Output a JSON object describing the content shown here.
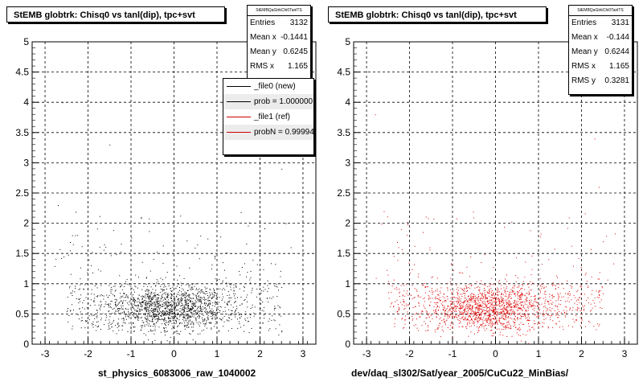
{
  "colors": {
    "ref": "#000000",
    "new": "#dd0000",
    "axis": "#000000",
    "grid": "#000000",
    "legend_red": "#cc0000"
  },
  "left_panel": {
    "title": "StEMB globtrk: Chisq0 vs tanl(dip), tpc+svt",
    "stats": {
      "name": "StEMBQaGtrkChi0TanlTS",
      "rows": [
        {
          "label": "Entries",
          "value": "3132"
        },
        {
          "label": "Mean x",
          "value": "-0.1441"
        },
        {
          "label": "Mean y",
          "value": "0.6245"
        },
        {
          "label": "RMS x",
          "value": "1.165"
        }
      ]
    },
    "legend": [
      {
        "text": "_file0 (new)",
        "color": "#000000"
      },
      {
        "text": "prob = 1.000000",
        "color": "#000000"
      },
      {
        "text": "_file1 (ref)",
        "color": "#cc0000"
      },
      {
        "text": "probN = 0.99994",
        "color": "#cc0000"
      }
    ],
    "footer": "st_physics_6083006_raw_1040002"
  },
  "right_panel": {
    "title": "StEMB globtrk: Chisq0 vs tanl(dip), tpc+svt",
    "stats": {
      "name": "StEMBQaGtrkChi0TanlTS",
      "rows": [
        {
          "label": "Entries",
          "value": "3131"
        },
        {
          "label": "Mean x",
          "value": "-0.144"
        },
        {
          "label": "Mean y",
          "value": "0.6244"
        },
        {
          "label": "RMS x",
          "value": "1.165"
        },
        {
          "label": "RMS y",
          "value": "0.3281"
        }
      ]
    },
    "footer": "dev/daq_sl302/Sat/year_2005/CuCu22_MinBias/"
  },
  "chart_data": [
    {
      "type": "scatter",
      "title": "StEMB globtrk: Chisq0 vs tanl(dip), tpc+svt",
      "xlim": [
        -3.3,
        3.3
      ],
      "ylim": [
        0,
        5
      ],
      "x_ticks": [
        -3,
        -2,
        -1,
        0,
        1,
        2,
        3
      ],
      "y_ticks": [
        0,
        0.5,
        1,
        1.5,
        2,
        2.5,
        3,
        3.5,
        4,
        4.5,
        5
      ],
      "grid": true,
      "color": "#000000",
      "entries": 3132,
      "mean_x": -0.1441,
      "mean_y": 0.6245,
      "rms_x": 1.165,
      "core_points": {
        "x_range": [
          -2.5,
          2.5
        ],
        "y_range": [
          0.2,
          1.0
        ],
        "peak_x": [
          -1.0,
          1.0
        ],
        "peak_y": 0.6
      },
      "outliers": [
        {
          "x": -2.6,
          "y": 4.0
        },
        {
          "x": -1.5,
          "y": 3.3
        },
        {
          "x": 2.5,
          "y": 2.9
        },
        {
          "x": -2.7,
          "y": 2.3
        },
        {
          "x": 2.6,
          "y": 2.0
        },
        {
          "x": -2.3,
          "y": 1.8
        }
      ]
    },
    {
      "type": "scatter",
      "title": "StEMB globtrk: Chisq0 vs tanl(dip), tpc+svt",
      "xlim": [
        -3.3,
        3.3
      ],
      "ylim": [
        0,
        5
      ],
      "x_ticks": [
        -3,
        -2,
        -1,
        0,
        1,
        2,
        3
      ],
      "y_ticks": [
        0,
        0.5,
        1,
        1.5,
        2,
        2.5,
        3,
        3.5,
        4,
        4.5,
        5
      ],
      "grid": true,
      "color": "#dd0000",
      "entries": 3131,
      "mean_x": -0.144,
      "mean_y": 0.6244,
      "rms_x": 1.165,
      "rms_y": 0.3281,
      "core_points": {
        "x_range": [
          -2.5,
          2.5
        ],
        "y_range": [
          0.2,
          1.0
        ],
        "peak_x": [
          -1.0,
          1.0
        ],
        "peak_y": 0.6
      },
      "outliers": [
        {
          "x": -2.8,
          "y": 3.8
        },
        {
          "x": 2.3,
          "y": 3.4
        },
        {
          "x": 2.4,
          "y": 2.6
        },
        {
          "x": -2.6,
          "y": 2.2
        },
        {
          "x": -2.2,
          "y": 1.9
        },
        {
          "x": 2.5,
          "y": 1.7
        }
      ]
    }
  ]
}
